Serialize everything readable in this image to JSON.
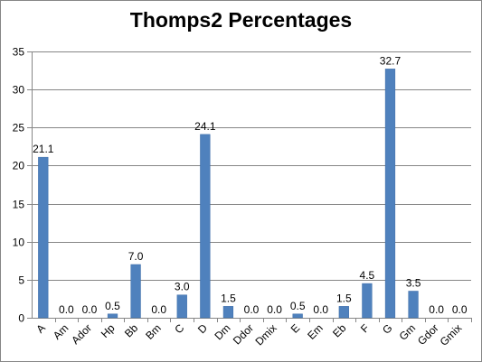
{
  "colors": {
    "bar": "#4F81BD",
    "bar_edge": "#3A6BA8",
    "grid": "#868686",
    "axis": "#868686"
  },
  "chart_data": {
    "type": "bar",
    "title": "Thomps2 Percentages",
    "xlabel": "",
    "ylabel": "",
    "ylim": [
      0,
      35
    ],
    "y_ticks": [
      0,
      5,
      10,
      15,
      20,
      25,
      30,
      35
    ],
    "grid": true,
    "legend": "none",
    "categories": [
      "A",
      "Am",
      "Ador",
      "Hp",
      "Bb",
      "Bm",
      "C",
      "D",
      "Dm",
      "Ddor",
      "Dmix",
      "E",
      "Em",
      "Eb",
      "F",
      "G",
      "Gm",
      "Gdor",
      "Gmix"
    ],
    "values": [
      21.1,
      0.0,
      0.0,
      0.5,
      7.0,
      0.0,
      3.0,
      24.1,
      1.5,
      0.0,
      0.0,
      0.5,
      0.0,
      1.5,
      4.5,
      32.7,
      3.5,
      0.0,
      0.0
    ],
    "data_labels": [
      "21.1",
      "0.0",
      "0.0",
      "0.5",
      "7.0",
      "0.0",
      "3.0",
      "24.1",
      "1.5",
      "0.0",
      "0.0",
      "0.5",
      "0.0",
      "1.5",
      "4.5",
      "32.7",
      "3.5",
      "0.0",
      "0.0"
    ]
  }
}
